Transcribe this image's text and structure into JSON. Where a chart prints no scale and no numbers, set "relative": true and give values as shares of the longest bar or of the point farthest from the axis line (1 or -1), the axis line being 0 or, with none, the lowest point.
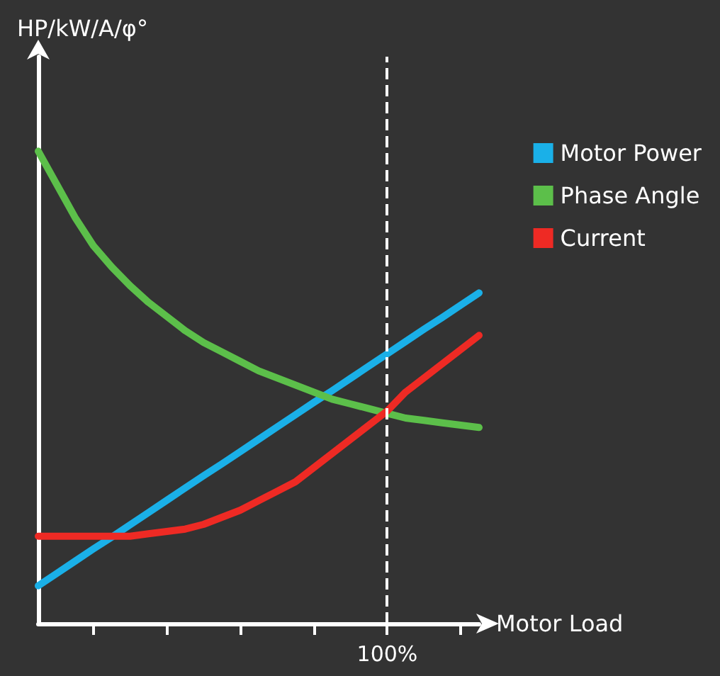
{
  "chart_data": {
    "type": "line",
    "relative": true,
    "ylabel": "HP/kW/A/φ°",
    "xlabel": "Motor Load",
    "categories": [
      null,
      null,
      null,
      null,
      null,
      null,
      null,
      null,
      null,
      null,
      null,
      null,
      null,
      null,
      null,
      null,
      null,
      null,
      null,
      null,
      null,
      null,
      null,
      null,
      null
    ],
    "series": [
      {
        "name": "Motor Power",
        "color": "#1ab0e8",
        "values": [
          0.08,
          0.106,
          0.132,
          0.158,
          0.183,
          0.209,
          0.235,
          0.261,
          0.287,
          0.313,
          0.338,
          0.364,
          0.39,
          0.416,
          0.442,
          0.468,
          0.493,
          0.519,
          0.545,
          0.571,
          0.597,
          0.623,
          0.648,
          0.674,
          0.7
        ]
      },
      {
        "name": "Phase Angle",
        "color": "#5cbf4a",
        "values": [
          1.0,
          0.93,
          0.86,
          0.8,
          0.755,
          0.715,
          0.68,
          0.65,
          0.62,
          0.595,
          0.575,
          0.555,
          0.535,
          0.52,
          0.505,
          0.49,
          0.475,
          0.465,
          0.455,
          0.445,
          0.435,
          0.43,
          0.425,
          0.42,
          0.415
        ]
      },
      {
        "name": "Current",
        "color": "#ee2a24",
        "values": [
          0.185,
          0.185,
          0.185,
          0.185,
          0.185,
          0.185,
          0.19,
          0.195,
          0.2,
          0.21,
          0.225,
          0.24,
          0.26,
          0.28,
          0.3,
          0.33,
          0.36,
          0.39,
          0.42,
          0.45,
          0.49,
          0.52,
          0.55,
          0.58,
          0.61
        ]
      }
    ],
    "annotations": [
      "100%"
    ],
    "legend": "right",
    "grid": false,
    "marker": "none",
    "line_style": "solid"
  }
}
